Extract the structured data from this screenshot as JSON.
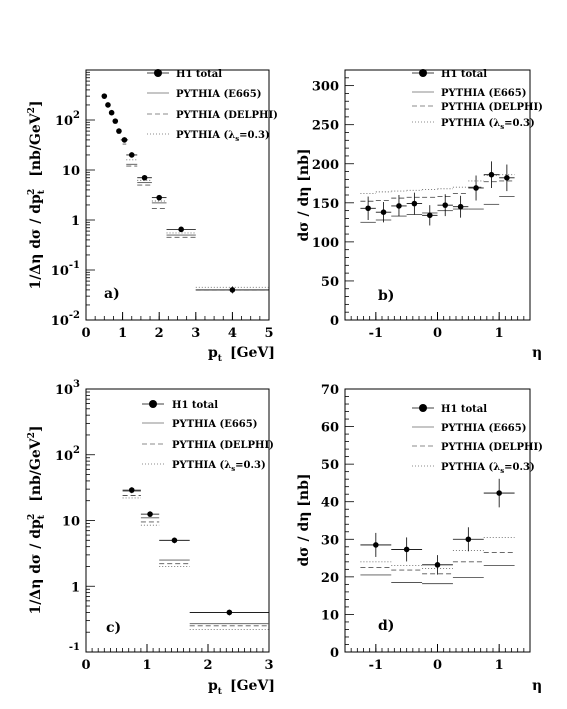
{
  "legend": {
    "h1": "H1 total",
    "e665": "PYTHIA (E665)",
    "delphi": "PYTHIA (DELPHI)",
    "lam": "PYTHIA (λ",
    "lam_sub": "s",
    "lam_tail": "=0.3)"
  },
  "labels": {
    "ylab_pt": "1/Δη dσ / dp",
    "ylab_pt_sub": "t",
    "ylab_pt_sup": "2",
    "ylab_pt_unit": "[nb/GeV",
    "ylab_pt_unit_sup": "2",
    "ylab_pt_unit_close": "]",
    "ylab_eta": "dσ / dη   [nb]",
    "xlab_pt": "p",
    "xlab_pt_sub": "t",
    "xlab_pt_unit": "[GeV]",
    "xlab_eta": "η"
  },
  "chart_data": [
    {
      "id": "a",
      "panel_label": "a)",
      "type": "scatter",
      "log_y": true,
      "xlim": [
        0,
        5
      ],
      "ylim": [
        0.01,
        1000
      ],
      "xticks": [
        "0",
        "1",
        "2",
        "3",
        "4",
        "5"
      ],
      "yticks": [
        {
          "v": 0.01,
          "base": "10",
          "exp": "-2"
        },
        {
          "v": 0.1,
          "base": "10",
          "exp": "-1"
        },
        {
          "v": 1,
          "base": "1",
          "exp": ""
        },
        {
          "v": 10,
          "base": "10",
          "exp": ""
        },
        {
          "v": 100,
          "base": "10",
          "exp": "2"
        }
      ],
      "xlabel": "p_t [GeV]",
      "ylabel": "1/Δη dσ / dp_t^2 [nb/GeV^2]",
      "data": {
        "x": [
          0.5,
          0.6,
          0.7,
          0.8,
          0.9,
          1.05,
          1.25,
          1.6,
          2.0,
          2.6,
          4.0
        ],
        "xerr": [
          0.05,
          0.05,
          0.05,
          0.05,
          0.05,
          0.1,
          0.15,
          0.2,
          0.2,
          0.4,
          1.0
        ],
        "y": [
          300,
          200,
          140,
          95,
          60,
          40,
          20,
          7.0,
          2.8,
          0.65,
          0.04
        ],
        "ylo": [
          270,
          180,
          125,
          85,
          54,
          36,
          18,
          6.3,
          2.5,
          0.58,
          0.034
        ],
        "yhi": [
          335,
          222,
          156,
          106,
          67,
          45,
          22.5,
          7.8,
          3.1,
          0.73,
          0.047
        ]
      },
      "curves": {
        "e665": [
          38,
          13,
          5.6,
          2.2,
          0.5,
          0.04
        ],
        "delphi": [
          33,
          12,
          5.0,
          1.7,
          0.45,
          0.04
        ],
        "lam": [
          42,
          16,
          6.2,
          2.4,
          0.55,
          0.045
        ]
      },
      "curve_x": [
        [
          1.0,
          1.1
        ],
        [
          1.1,
          1.4
        ],
        [
          1.4,
          1.8
        ],
        [
          1.8,
          2.2
        ],
        [
          2.2,
          3.0
        ],
        [
          3.0,
          5.0
        ]
      ]
    },
    {
      "id": "b",
      "panel_label": "b)",
      "type": "scatter",
      "log_y": false,
      "xlim": [
        -1.5,
        1.5
      ],
      "ylim": [
        0,
        320
      ],
      "xticks": [
        "-1",
        "0",
        "1"
      ],
      "xtick_values": [
        -1,
        0,
        1
      ],
      "yticks": [
        0,
        50,
        100,
        150,
        200,
        250,
        300
      ],
      "xlabel": "η",
      "ylabel": "dσ / dη [nb]",
      "data": {
        "x": [
          -1.125,
          -0.875,
          -0.625,
          -0.375,
          -0.125,
          0.125,
          0.375,
          0.625,
          0.875,
          1.125
        ],
        "xerr": [
          0.125,
          0.125,
          0.125,
          0.125,
          0.125,
          0.125,
          0.125,
          0.125,
          0.125,
          0.125
        ],
        "y": [
          143,
          138,
          146,
          149,
          134,
          147,
          145,
          169,
          186,
          182
        ],
        "ylo": [
          128,
          125,
          133,
          135,
          121,
          133,
          131,
          153,
          169,
          165
        ],
        "yhi": [
          158,
          151,
          160,
          163,
          147,
          161,
          159,
          185,
          203,
          199
        ]
      },
      "curves": {
        "e665": [
          125,
          128,
          133,
          135,
          137,
          140,
          142,
          142,
          148,
          158
        ],
        "delphi": [
          152,
          153,
          156,
          157,
          157,
          158,
          162,
          170,
          177,
          178
        ],
        "lam": [
          162,
          164,
          165,
          166,
          167,
          168,
          170,
          178,
          185,
          186
        ]
      }
    },
    {
      "id": "c",
      "panel_label": "c)",
      "type": "scatter",
      "log_y": true,
      "xlim": [
        0,
        3
      ],
      "ylim": [
        0.1,
        1000
      ],
      "xticks": [
        "0",
        "1",
        "2",
        "3"
      ],
      "yticks": [
        {
          "v": 0.1,
          "base": "",
          "exp": "-1"
        },
        {
          "v": 1,
          "base": "1",
          "exp": ""
        },
        {
          "v": 10,
          "base": "10",
          "exp": ""
        },
        {
          "v": 100,
          "base": "10",
          "exp": "2"
        },
        {
          "v": 1000,
          "base": "10",
          "exp": "3"
        }
      ],
      "xlabel": "p_t [GeV]",
      "ylabel": "1/Δη dσ / dp_t^2 [nb/GeV^2]",
      "data": {
        "x": [
          0.75,
          1.05,
          1.45,
          2.35
        ],
        "xerr": [
          0.15,
          0.15,
          0.25,
          0.65
        ],
        "y": [
          29,
          12.5,
          5.0,
          0.4
        ],
        "ylo": [
          26,
          11.3,
          4.5,
          0.36
        ],
        "yhi": [
          32,
          13.8,
          5.5,
          0.44
        ]
      },
      "curves": {
        "e665": [
          28,
          11,
          2.5,
          0.27
        ],
        "delphi": [
          24,
          9.5,
          2.2,
          0.25
        ],
        "lam": [
          22,
          8.5,
          2.0,
          0.22
        ]
      }
    },
    {
      "id": "d",
      "panel_label": "d)",
      "type": "scatter",
      "log_y": false,
      "xlim": [
        -1.5,
        1.5
      ],
      "ylim": [
        0,
        70
      ],
      "xticks": [
        "-1",
        "0",
        "1"
      ],
      "xtick_values": [
        -1,
        0,
        1
      ],
      "yticks": [
        0,
        10,
        20,
        30,
        40,
        50,
        60,
        70
      ],
      "xlabel": "η",
      "ylabel": "dσ / dη [nb]",
      "data": {
        "x": [
          -1.0,
          -0.5,
          0.0,
          0.5,
          1.0
        ],
        "xerr": [
          0.25,
          0.25,
          0.25,
          0.25,
          0.25
        ],
        "y": [
          28.5,
          27.3,
          23.2,
          30.0,
          42.3
        ],
        "ylo": [
          25.3,
          24.1,
          20.6,
          26.8,
          38.5
        ],
        "yhi": [
          31.7,
          30.5,
          25.8,
          33.2,
          46.1
        ]
      },
      "curves": {
        "e665": [
          20.5,
          18.5,
          18.2,
          19.8,
          23.0
        ],
        "delphi": [
          22.5,
          21.8,
          20.8,
          24.0,
          26.5
        ],
        "lam": [
          24.0,
          23.0,
          22.2,
          27.0,
          30.5
        ]
      }
    }
  ]
}
